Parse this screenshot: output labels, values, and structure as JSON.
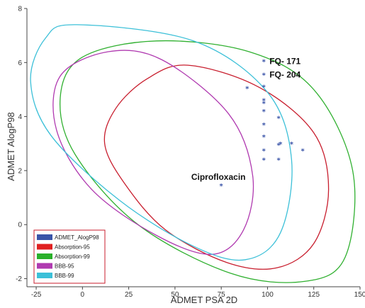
{
  "chart_data": {
    "type": "scatter",
    "title": "",
    "xlabel": "ADMET PSA 2D",
    "ylabel": "ADMET AlogP98",
    "xlim": [
      -30,
      150
    ],
    "ylim": [
      -2.3,
      8
    ],
    "x_ticks": [
      "-25",
      "0",
      "25",
      "50",
      "75",
      "100",
      "125",
      "150"
    ],
    "y_ticks": [
      "8",
      "6",
      "4",
      "2",
      "0",
      "-2"
    ],
    "grid": false,
    "legend_position": "bottom-left",
    "marker": "*",
    "legend": [
      {
        "label": "ADMET_AlogP98",
        "color": "#3a54a8"
      },
      {
        "label": "Absorption-95",
        "color": "#e02020"
      },
      {
        "label": "Absorption-99",
        "color": "#2ab02a"
      },
      {
        "label": "BBB-95",
        "color": "#b03ab0"
      },
      {
        "label": "BBB-99",
        "color": "#3cc0d8"
      }
    ],
    "ellipses": [
      {
        "name": "Absorption-95",
        "color": "#c81e2e",
        "points": [
          [
            57,
            5.9
          ],
          [
            95,
            5.1
          ],
          [
            125,
            3.4
          ],
          [
            133,
            1.3
          ],
          [
            125,
            -0.7
          ],
          [
            105,
            -1.6
          ],
          [
            78,
            -1.4
          ],
          [
            45,
            -0.2
          ],
          [
            23,
            1.5
          ],
          [
            12,
            3.0
          ],
          [
            18,
            4.3
          ],
          [
            35,
            5.4
          ]
        ]
      },
      {
        "name": "Absorption-99",
        "color": "#30b030",
        "points": [
          [
            40,
            6.8
          ],
          [
            90,
            6.4
          ],
          [
            125,
            5.0
          ],
          [
            146,
            2.0
          ],
          [
            142,
            -1.2
          ],
          [
            120,
            -2.1
          ],
          [
            80,
            -1.8
          ],
          [
            30,
            0.0
          ],
          [
            -4,
            2.6
          ],
          [
            -12,
            4.7
          ],
          [
            0,
            6.2
          ]
        ]
      },
      {
        "name": "BBB-95",
        "color": "#b03ab0",
        "points": [
          [
            14,
            6.4
          ],
          [
            43,
            6.1
          ],
          [
            79,
            4.1
          ],
          [
            92,
            1.8
          ],
          [
            87,
            -0.2
          ],
          [
            70,
            -1.1
          ],
          [
            40,
            -0.4
          ],
          [
            5,
            1.3
          ],
          [
            -14,
            3.5
          ],
          [
            -12,
            5.5
          ]
        ]
      },
      {
        "name": "BBB-99",
        "color": "#3cc0d8",
        "points": [
          [
            -3,
            7.4
          ],
          [
            60,
            6.8
          ],
          [
            100,
            4.9
          ],
          [
            113,
            2.4
          ],
          [
            107,
            -0.3
          ],
          [
            88,
            -1.3
          ],
          [
            60,
            -0.8
          ],
          [
            20,
            0.9
          ],
          [
            -17,
            3.3
          ],
          [
            -28,
            5.3
          ],
          [
            -20,
            6.9
          ]
        ]
      }
    ],
    "points": [
      {
        "x": 98,
        "y": 6.05
      },
      {
        "x": 98,
        "y": 5.55
      },
      {
        "x": 89,
        "y": 5.05
      },
      {
        "x": 98,
        "y": 5.1
      },
      {
        "x": 98,
        "y": 4.6
      },
      {
        "x": 98,
        "y": 4.5
      },
      {
        "x": 98,
        "y": 4.2
      },
      {
        "x": 106,
        "y": 3.95
      },
      {
        "x": 98,
        "y": 3.7
      },
      {
        "x": 98,
        "y": 3.25
      },
      {
        "x": 107,
        "y": 3.0
      },
      {
        "x": 106,
        "y": 2.95
      },
      {
        "x": 113,
        "y": 3.0
      },
      {
        "x": 119,
        "y": 2.75
      },
      {
        "x": 98,
        "y": 2.75
      },
      {
        "x": 98,
        "y": 2.4
      },
      {
        "x": 106,
        "y": 2.4
      },
      {
        "x": 75,
        "y": 1.45
      }
    ],
    "annotations": [
      {
        "text": "FQ- 171",
        "x": 98,
        "y": 6.05
      },
      {
        "text": "FQ- 204",
        "x": 98,
        "y": 5.55
      },
      {
        "text": "Ciprofloxacin",
        "x": 75,
        "y": 1.45
      }
    ]
  }
}
